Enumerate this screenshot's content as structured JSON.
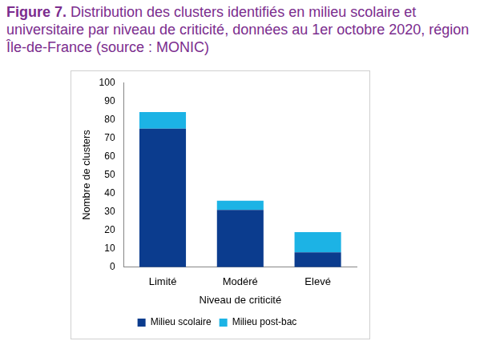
{
  "chart_data": {
    "type": "bar",
    "title": "Figure 7. Distribution des clusters identifiés en milieu scolaire et universitaire par niveau de criticité, données au 1er octobre 2020, région Île-de-France (source : MONIC)",
    "x_label": "Niveau de criticité",
    "y_label": "Nombre de clusters",
    "categories": [
      "Limité",
      "Modéré",
      "Elevé"
    ],
    "series": [
      {
        "name": "Milieu scolaire",
        "color": "#0b3c8e",
        "values": [
          75,
          31,
          8
        ]
      },
      {
        "name": "Milieu post-bac",
        "color": "#1cb3e5",
        "values": [
          9,
          5,
          11
        ]
      }
    ],
    "stacked": true,
    "ylim": [
      0,
      100
    ],
    "yticks": [
      0,
      10,
      20,
      30,
      40,
      50,
      60,
      70,
      80,
      90,
      100
    ],
    "grid": false,
    "legend": "bottom"
  }
}
